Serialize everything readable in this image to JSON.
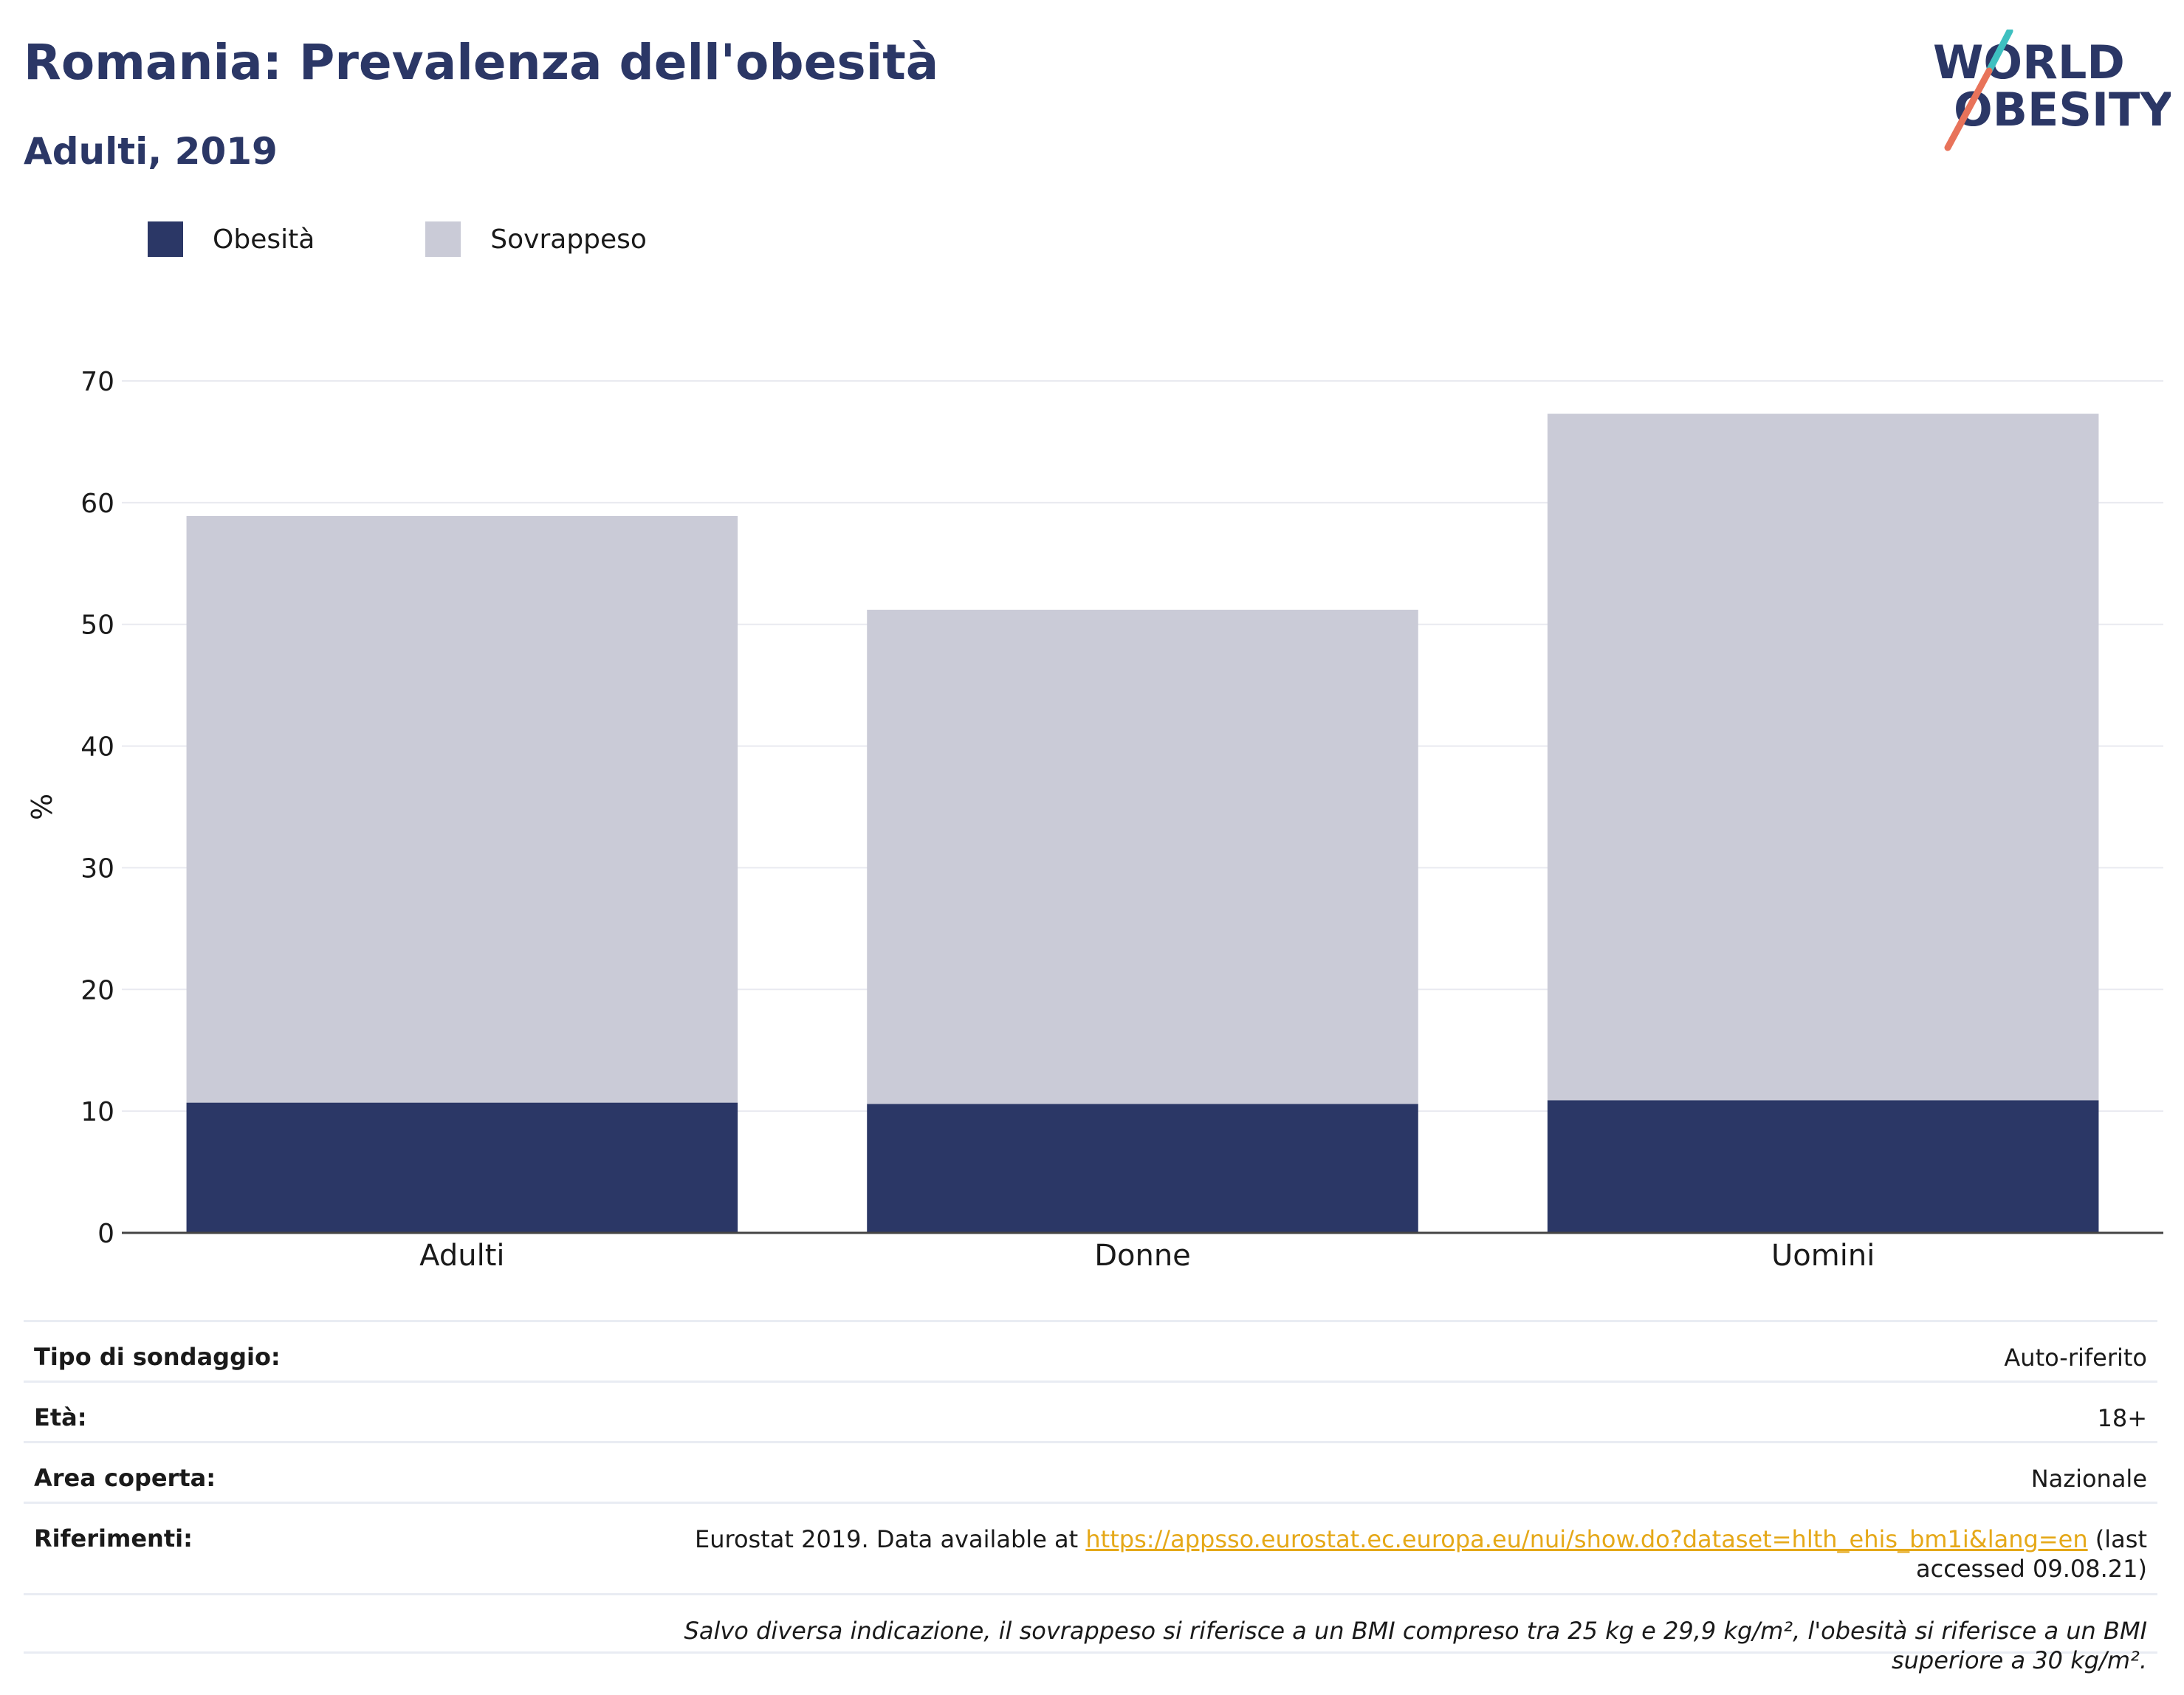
{
  "header": {
    "title": "Romania: Prevalenza dell'obesità",
    "subtitle": "Adulti, 2019"
  },
  "logo": {
    "line1": "WORLD",
    "line2": "OBESITY"
  },
  "colors": {
    "obesity": "#2b3766",
    "overweight": "#cacbd7",
    "accent_teal": "#3ec0c0",
    "accent_coral": "#e8735a",
    "link": "#e5a818"
  },
  "chart_data": {
    "type": "bar",
    "stacked": true,
    "categories": [
      "Adulti",
      "Donne",
      "Uomini"
    ],
    "series": [
      {
        "name": "Obesità",
        "values": [
          10.7,
          10.6,
          10.9
        ]
      },
      {
        "name": "Sovrappeso",
        "values": [
          48.2,
          40.6,
          56.4
        ]
      }
    ],
    "ylabel": "%",
    "ylim": [
      0,
      70
    ],
    "yticks": [
      0,
      10,
      20,
      30,
      40,
      50,
      60,
      70
    ],
    "grid": true,
    "legend_position": "top-left"
  },
  "info": {
    "survey_type_label": "Tipo di sondaggio:",
    "survey_type_value": "Auto-riferito",
    "age_label": "Età:",
    "age_value": "18+",
    "area_label": "Area coperta:",
    "area_value": "Nazionale",
    "references_label": "Riferimenti:",
    "references_prefix": "Eurostat 2019. Data available at ",
    "references_link": "https://appsso.eurostat.ec.europa.eu/nui/show.do?dataset=hlth_ehis_bm1i&lang=en",
    "references_suffix": " (last accessed 09.08.21)",
    "note": "Salvo diversa indicazione, il sovrappeso si riferisce a un BMI compreso tra 25 kg e 29,9 kg/m², l'obesità si riferisce a un BMI superiore a 30 kg/m²."
  }
}
